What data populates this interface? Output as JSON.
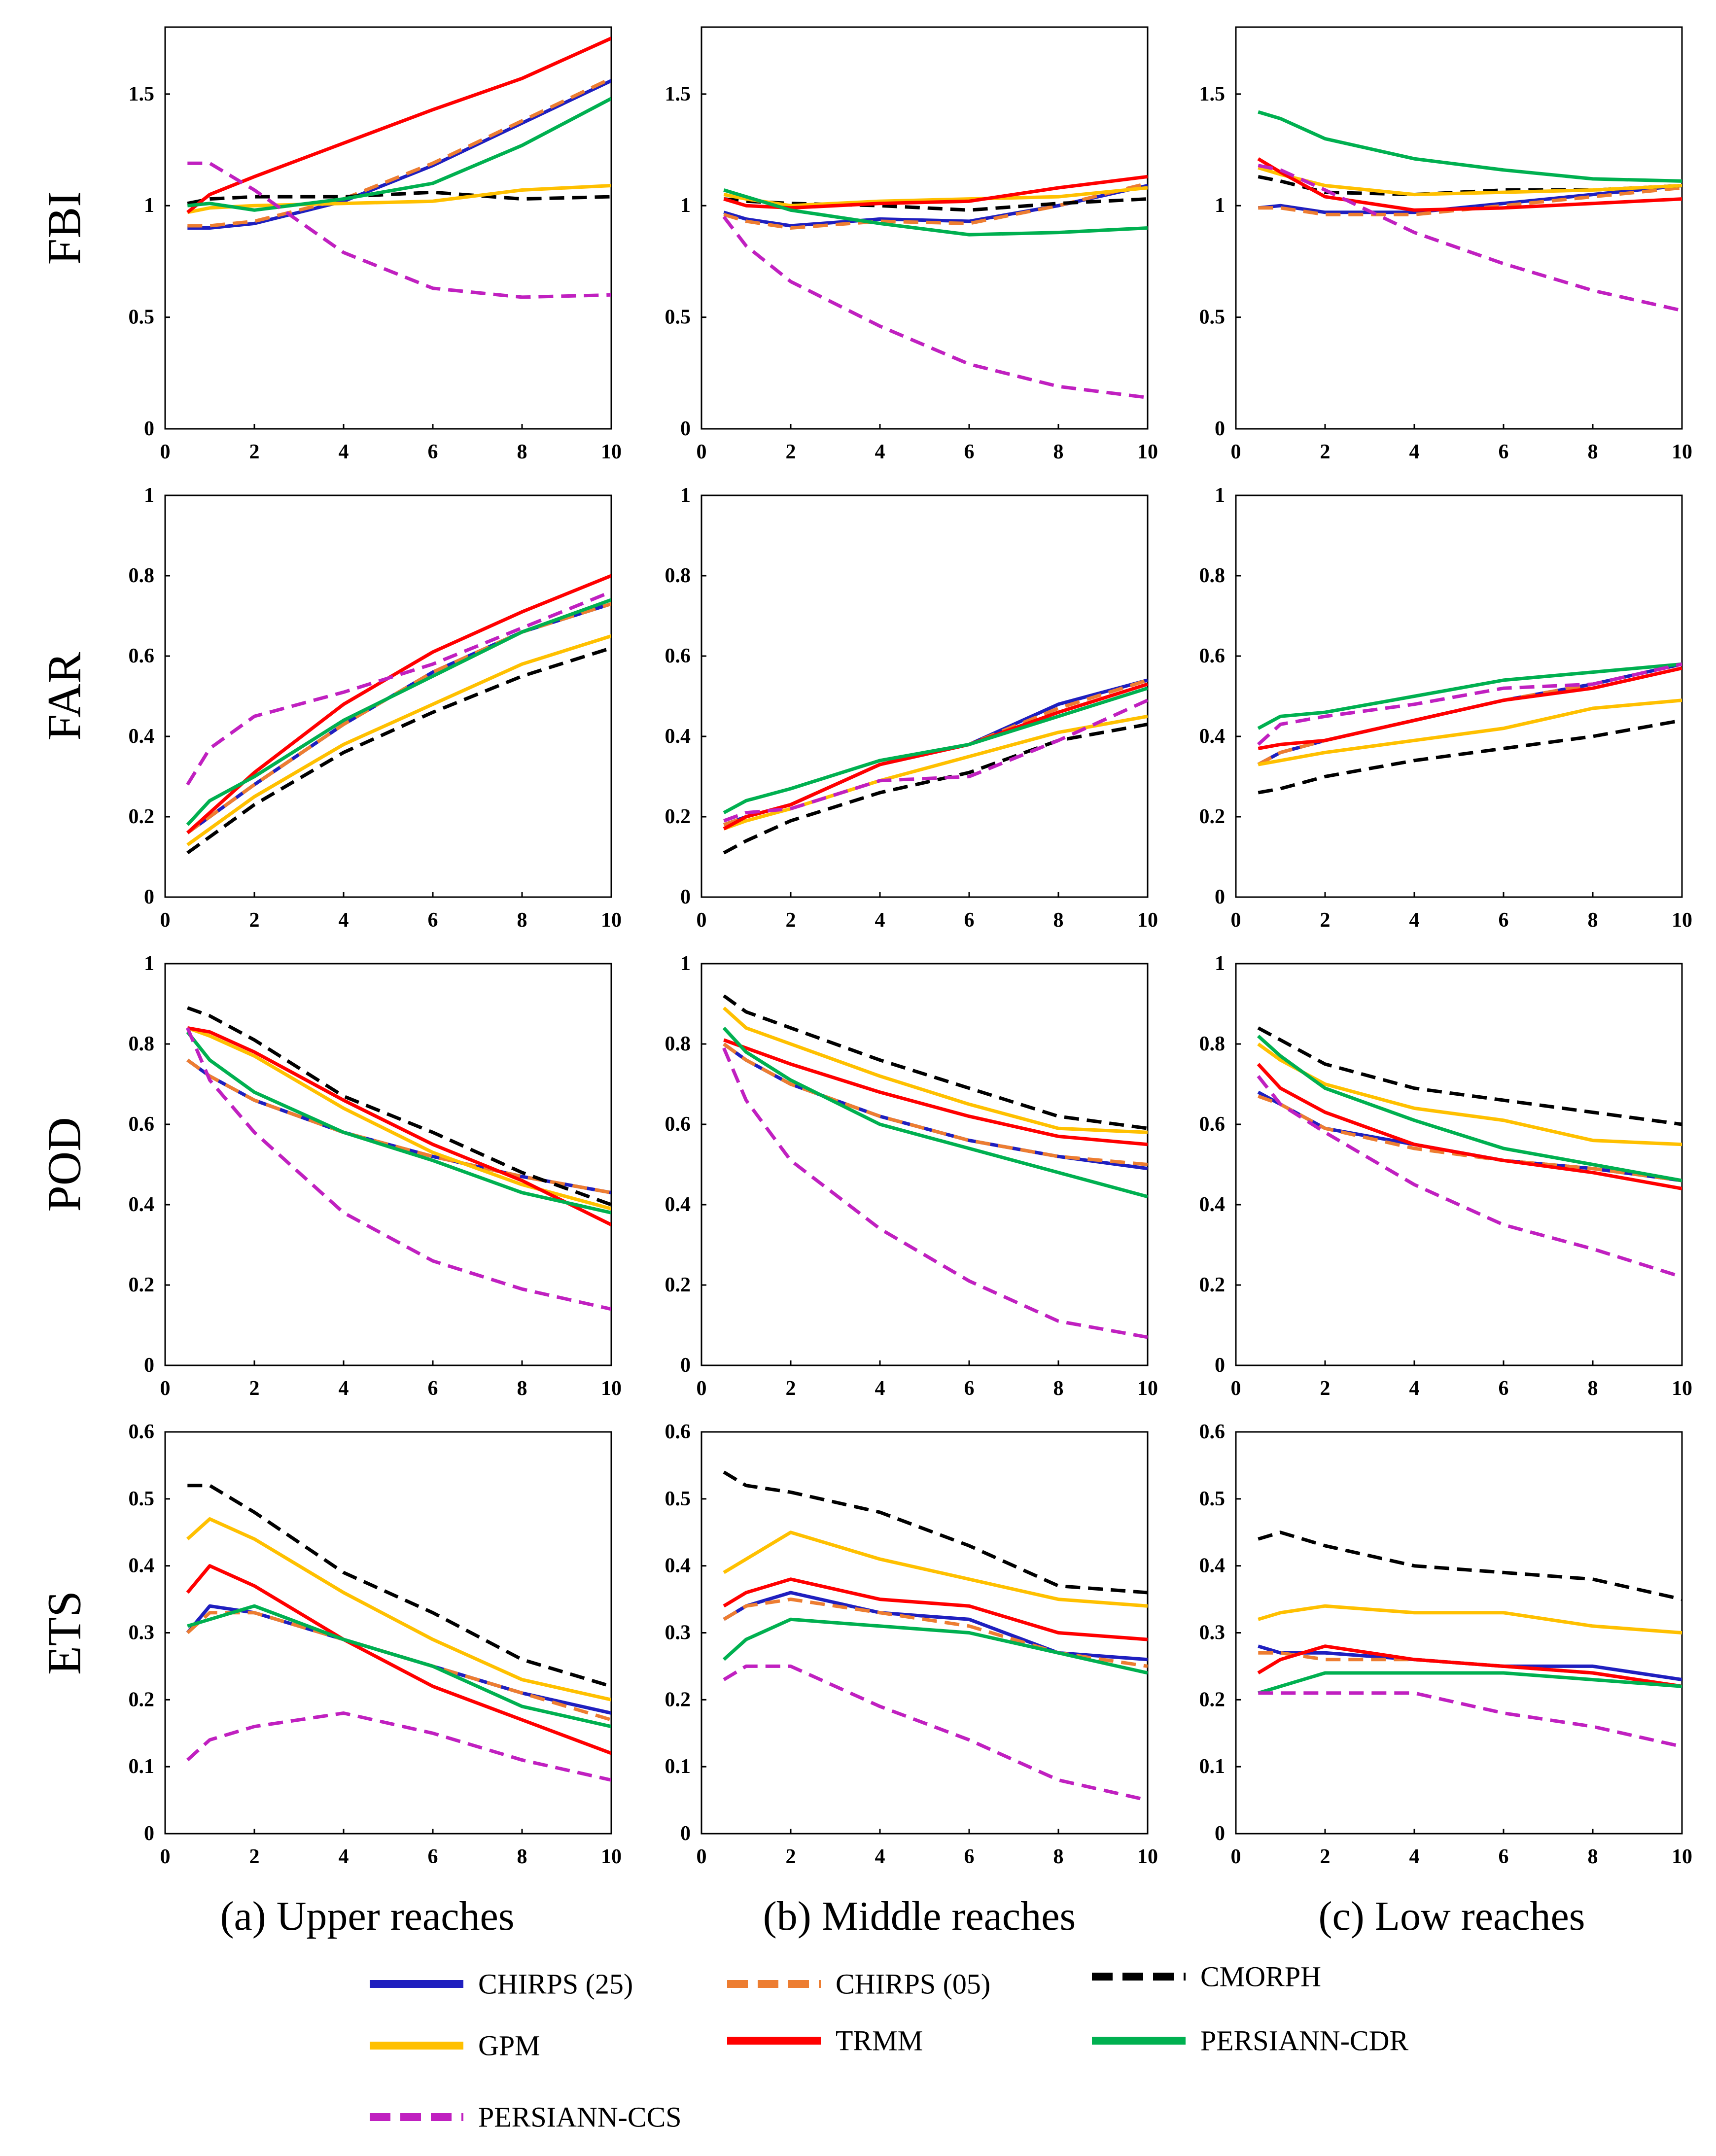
{
  "chart_data": {
    "type": "line",
    "x": [
      0.5,
      1,
      2,
      4,
      6,
      8,
      10
    ],
    "xlim": [
      0,
      10
    ],
    "xticks": [
      0,
      2,
      4,
      6,
      8,
      10
    ],
    "metrics": [
      {
        "name": "FBI",
        "ylim": [
          0,
          1.8
        ],
        "yticks": [
          0,
          0.5,
          1,
          1.5
        ]
      },
      {
        "name": "FAR",
        "ylim": [
          0,
          1
        ],
        "yticks": [
          0,
          0.2,
          0.4,
          0.6,
          0.8,
          1
        ]
      },
      {
        "name": "POD",
        "ylim": [
          0,
          1
        ],
        "yticks": [
          0,
          0.2,
          0.4,
          0.6,
          0.8,
          1
        ]
      },
      {
        "name": "ETS",
        "ylim": [
          0,
          0.6
        ],
        "yticks": [
          0,
          0.1,
          0.2,
          0.3,
          0.4,
          0.5,
          0.6
        ]
      }
    ],
    "regions": [
      {
        "title": "(a) Upper reaches"
      },
      {
        "title": "(b) Middle reaches"
      },
      {
        "title": "(c) Low reaches"
      }
    ],
    "series": [
      {
        "name": "CHIRPS (25)",
        "color": "#1f1fbf",
        "dash": "solid"
      },
      {
        "name": "CHIRPS (05)",
        "color": "#ed7d31",
        "dash": "dashed"
      },
      {
        "name": "CMORPH",
        "color": "#000000",
        "dash": "dashed"
      },
      {
        "name": "GPM",
        "color": "#ffc000",
        "dash": "solid"
      },
      {
        "name": "TRMM",
        "color": "#ff0000",
        "dash": "solid"
      },
      {
        "name": "PERSIANN-CDR",
        "color": "#00b050",
        "dash": "solid"
      },
      {
        "name": "PERSIANN-CCS",
        "color": "#c020c0",
        "dash": "dashed"
      }
    ],
    "values": {
      "FBI": [
        {
          "CHIRPS (25)": [
            0.9,
            0.9,
            0.92,
            1.02,
            1.18,
            1.37,
            1.56
          ],
          "CHIRPS (05)": [
            0.91,
            0.91,
            0.93,
            1.03,
            1.19,
            1.38,
            1.57
          ],
          "CMORPH": [
            1.01,
            1.03,
            1.04,
            1.04,
            1.06,
            1.03,
            1.04
          ],
          "GPM": [
            0.97,
            0.99,
            1.0,
            1.01,
            1.02,
            1.07,
            1.09
          ],
          "TRMM": [
            0.97,
            1.05,
            1.13,
            1.28,
            1.43,
            1.57,
            1.75
          ],
          "PERSIANN-CDR": [
            1.0,
            1.01,
            0.98,
            1.03,
            1.1,
            1.27,
            1.48
          ],
          "PERSIANN-CCS": [
            1.19,
            1.19,
            1.07,
            0.79,
            0.63,
            0.59,
            0.6
          ]
        },
        {
          "CHIRPS (25)": [
            0.97,
            0.94,
            0.91,
            0.94,
            0.93,
            1.0,
            1.09
          ],
          "CHIRPS (05)": [
            0.96,
            0.93,
            0.9,
            0.93,
            0.92,
            1.0,
            1.1
          ],
          "CMORPH": [
            1.03,
            1.02,
            1.01,
            1.0,
            0.98,
            1.01,
            1.03
          ],
          "GPM": [
            1.05,
            1.03,
            1.0,
            1.02,
            1.03,
            1.04,
            1.08
          ],
          "TRMM": [
            1.03,
            1.0,
            0.99,
            1.01,
            1.02,
            1.08,
            1.13
          ],
          "PERSIANN-CDR": [
            1.07,
            1.04,
            0.98,
            0.92,
            0.87,
            0.88,
            0.9
          ],
          "PERSIANN-CCS": [
            0.95,
            0.82,
            0.66,
            0.46,
            0.29,
            0.19,
            0.14
          ]
        },
        {
          "CHIRPS (25)": [
            0.99,
            1.0,
            0.97,
            0.97,
            1.01,
            1.05,
            1.09
          ],
          "CHIRPS (05)": [
            0.99,
            0.99,
            0.96,
            0.96,
            1.0,
            1.04,
            1.08
          ],
          "CMORPH": [
            1.13,
            1.11,
            1.06,
            1.05,
            1.07,
            1.07,
            1.09
          ],
          "GPM": [
            1.17,
            1.14,
            1.09,
            1.05,
            1.06,
            1.07,
            1.09
          ],
          "TRMM": [
            1.21,
            1.15,
            1.04,
            0.98,
            0.99,
            1.01,
            1.03
          ],
          "PERSIANN-CDR": [
            1.42,
            1.39,
            1.3,
            1.21,
            1.16,
            1.12,
            1.11
          ],
          "PERSIANN-CCS": [
            1.18,
            1.16,
            1.07,
            0.88,
            0.74,
            0.62,
            0.53
          ]
        }
      ],
      "FAR": [
        {
          "CHIRPS (25)": [
            0.16,
            0.2,
            0.28,
            0.43,
            0.56,
            0.66,
            0.73
          ],
          "CHIRPS (05)": [
            0.16,
            0.2,
            0.28,
            0.43,
            0.56,
            0.66,
            0.73
          ],
          "CMORPH": [
            0.11,
            0.15,
            0.23,
            0.36,
            0.46,
            0.55,
            0.62
          ],
          "GPM": [
            0.13,
            0.17,
            0.25,
            0.38,
            0.48,
            0.58,
            0.65
          ],
          "TRMM": [
            0.16,
            0.21,
            0.31,
            0.48,
            0.61,
            0.71,
            0.8
          ],
          "PERSIANN-CDR": [
            0.18,
            0.24,
            0.3,
            0.44,
            0.55,
            0.66,
            0.74
          ],
          "PERSIANN-CCS": [
            0.28,
            0.37,
            0.45,
            0.51,
            0.58,
            0.67,
            0.76
          ]
        },
        {
          "CHIRPS (25)": [
            0.18,
            0.2,
            0.23,
            0.33,
            0.38,
            0.48,
            0.54
          ],
          "CHIRPS (05)": [
            0.18,
            0.2,
            0.23,
            0.33,
            0.38,
            0.47,
            0.54
          ],
          "CMORPH": [
            0.11,
            0.14,
            0.19,
            0.26,
            0.31,
            0.39,
            0.43
          ],
          "GPM": [
            0.17,
            0.19,
            0.22,
            0.29,
            0.35,
            0.41,
            0.45
          ],
          "TRMM": [
            0.17,
            0.2,
            0.23,
            0.33,
            0.38,
            0.46,
            0.53
          ],
          "PERSIANN-CDR": [
            0.21,
            0.24,
            0.27,
            0.34,
            0.38,
            0.45,
            0.52
          ],
          "PERSIANN-CCS": [
            0.19,
            0.21,
            0.22,
            0.29,
            0.3,
            0.39,
            0.49
          ]
        },
        {
          "CHIRPS (25)": [
            0.33,
            0.36,
            0.39,
            0.44,
            0.49,
            0.53,
            0.58
          ],
          "CHIRPS (05)": [
            0.33,
            0.36,
            0.39,
            0.44,
            0.49,
            0.53,
            0.58
          ],
          "CMORPH": [
            0.26,
            0.27,
            0.3,
            0.34,
            0.37,
            0.4,
            0.44
          ],
          "GPM": [
            0.33,
            0.34,
            0.36,
            0.39,
            0.42,
            0.47,
            0.49
          ],
          "TRMM": [
            0.37,
            0.38,
            0.39,
            0.44,
            0.49,
            0.52,
            0.57
          ],
          "PERSIANN-CDR": [
            0.42,
            0.45,
            0.46,
            0.5,
            0.54,
            0.56,
            0.58
          ],
          "PERSIANN-CCS": [
            0.38,
            0.43,
            0.45,
            0.48,
            0.52,
            0.53,
            0.58
          ]
        }
      ],
      "POD": [
        {
          "CHIRPS (25)": [
            0.76,
            0.72,
            0.66,
            0.58,
            0.52,
            0.47,
            0.43
          ],
          "CHIRPS (05)": [
            0.76,
            0.72,
            0.66,
            0.58,
            0.52,
            0.47,
            0.43
          ],
          "CMORPH": [
            0.89,
            0.87,
            0.81,
            0.67,
            0.58,
            0.48,
            0.4
          ],
          "GPM": [
            0.84,
            0.82,
            0.77,
            0.64,
            0.53,
            0.45,
            0.39
          ],
          "TRMM": [
            0.84,
            0.83,
            0.78,
            0.66,
            0.55,
            0.46,
            0.35
          ],
          "PERSIANN-CDR": [
            0.83,
            0.76,
            0.68,
            0.58,
            0.51,
            0.43,
            0.38
          ],
          "PERSIANN-CCS": [
            0.84,
            0.71,
            0.58,
            0.38,
            0.26,
            0.19,
            0.14
          ]
        },
        {
          "CHIRPS (25)": [
            0.8,
            0.76,
            0.7,
            0.62,
            0.56,
            0.52,
            0.49
          ],
          "CHIRPS (05)": [
            0.8,
            0.76,
            0.7,
            0.62,
            0.56,
            0.52,
            0.5
          ],
          "CMORPH": [
            0.92,
            0.88,
            0.84,
            0.76,
            0.69,
            0.62,
            0.59
          ],
          "GPM": [
            0.89,
            0.84,
            0.8,
            0.72,
            0.65,
            0.59,
            0.58
          ],
          "TRMM": [
            0.81,
            0.79,
            0.75,
            0.68,
            0.62,
            0.57,
            0.55
          ],
          "PERSIANN-CDR": [
            0.84,
            0.78,
            0.71,
            0.6,
            0.54,
            0.48,
            0.42
          ],
          "PERSIANN-CCS": [
            0.79,
            0.66,
            0.51,
            0.34,
            0.21,
            0.11,
            0.07
          ]
        },
        {
          "CHIRPS (25)": [
            0.68,
            0.65,
            0.59,
            0.55,
            0.51,
            0.49,
            0.46
          ],
          "CHIRPS (05)": [
            0.67,
            0.65,
            0.59,
            0.54,
            0.51,
            0.49,
            0.46
          ],
          "CMORPH": [
            0.84,
            0.81,
            0.75,
            0.69,
            0.66,
            0.63,
            0.6
          ],
          "GPM": [
            0.8,
            0.76,
            0.7,
            0.64,
            0.61,
            0.56,
            0.55
          ],
          "TRMM": [
            0.75,
            0.69,
            0.63,
            0.55,
            0.51,
            0.48,
            0.44
          ],
          "PERSIANN-CDR": [
            0.82,
            0.77,
            0.69,
            0.61,
            0.54,
            0.5,
            0.46
          ],
          "PERSIANN-CCS": [
            0.72,
            0.65,
            0.58,
            0.45,
            0.35,
            0.29,
            0.22
          ]
        }
      ],
      "ETS": [
        {
          "CHIRPS (25)": [
            0.3,
            0.34,
            0.33,
            0.29,
            0.25,
            0.21,
            0.18
          ],
          "CHIRPS (05)": [
            0.3,
            0.33,
            0.33,
            0.29,
            0.25,
            0.21,
            0.17
          ],
          "CMORPH": [
            0.52,
            0.52,
            0.48,
            0.39,
            0.33,
            0.26,
            0.22
          ],
          "GPM": [
            0.44,
            0.47,
            0.44,
            0.36,
            0.29,
            0.23,
            0.2
          ],
          "TRMM": [
            0.36,
            0.4,
            0.37,
            0.29,
            0.22,
            0.17,
            0.12
          ],
          "PERSIANN-CDR": [
            0.31,
            0.32,
            0.34,
            0.29,
            0.25,
            0.19,
            0.16
          ],
          "PERSIANN-CCS": [
            0.11,
            0.14,
            0.16,
            0.18,
            0.15,
            0.11,
            0.08
          ]
        },
        {
          "CHIRPS (25)": [
            0.32,
            0.34,
            0.36,
            0.33,
            0.32,
            0.27,
            0.26
          ],
          "CHIRPS (05)": [
            0.32,
            0.34,
            0.35,
            0.33,
            0.31,
            0.27,
            0.25
          ],
          "CMORPH": [
            0.54,
            0.52,
            0.51,
            0.48,
            0.43,
            0.37,
            0.36
          ],
          "GPM": [
            0.39,
            0.41,
            0.45,
            0.41,
            0.38,
            0.35,
            0.34
          ],
          "TRMM": [
            0.34,
            0.36,
            0.38,
            0.35,
            0.34,
            0.3,
            0.29
          ],
          "PERSIANN-CDR": [
            0.26,
            0.29,
            0.32,
            0.31,
            0.3,
            0.27,
            0.24
          ],
          "PERSIANN-CCS": [
            0.23,
            0.25,
            0.25,
            0.19,
            0.14,
            0.08,
            0.05
          ]
        },
        {
          "CHIRPS (25)": [
            0.28,
            0.27,
            0.27,
            0.26,
            0.25,
            0.25,
            0.23
          ],
          "CHIRPS (05)": [
            0.27,
            0.27,
            0.26,
            0.26,
            0.25,
            0.24,
            0.22
          ],
          "CMORPH": [
            0.44,
            0.45,
            0.43,
            0.4,
            0.39,
            0.38,
            0.35
          ],
          "GPM": [
            0.32,
            0.33,
            0.34,
            0.33,
            0.33,
            0.31,
            0.3
          ],
          "TRMM": [
            0.24,
            0.26,
            0.28,
            0.26,
            0.25,
            0.24,
            0.22
          ],
          "PERSIANN-CDR": [
            0.21,
            0.22,
            0.24,
            0.24,
            0.24,
            0.23,
            0.22
          ],
          "PERSIANN-CCS": [
            0.21,
            0.21,
            0.21,
            0.21,
            0.18,
            0.16,
            0.13
          ]
        }
      ]
    }
  }
}
